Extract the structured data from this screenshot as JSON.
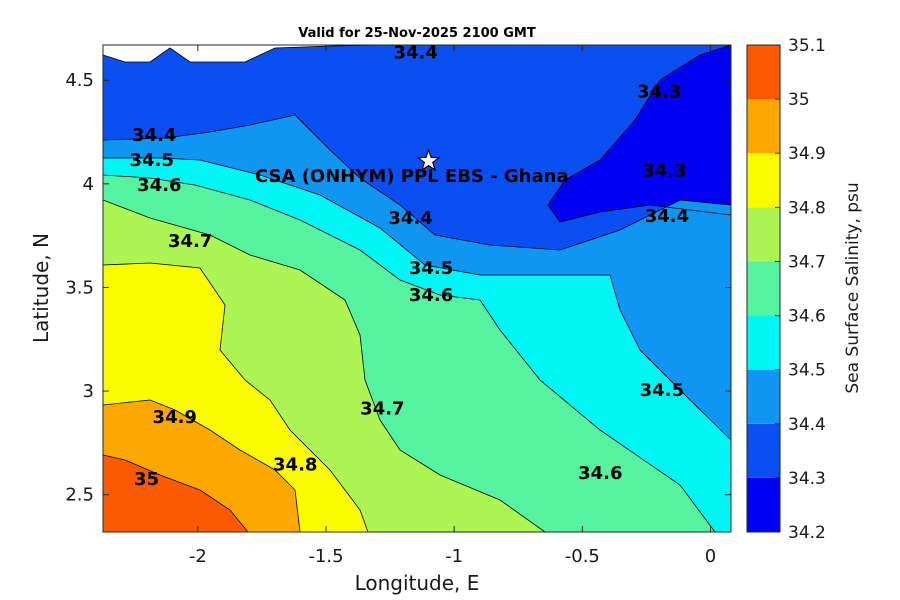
{
  "chart_data": {
    "type": "contour",
    "title": "Valid for 25-Nov-2025 2100 GMT",
    "xlabel": "Longitude, E",
    "ylabel": "Latitude, N",
    "xlim": [
      -2.37,
      0.08
    ],
    "ylim": [
      2.32,
      4.67
    ],
    "x_ticks": [
      "-2",
      "-1.5",
      "-1",
      "-0.5",
      "0"
    ],
    "y_ticks": [
      "2.5",
      "3",
      "3.5",
      "4",
      "4.5"
    ],
    "colorbar": {
      "label": "Sea Surface Salinity, psu",
      "ticks": [
        "34.2",
        "34.3",
        "34.4",
        "34.5",
        "34.6",
        "34.7",
        "34.8",
        "34.9",
        "35",
        "35.1"
      ],
      "colors": [
        "#0000f5",
        "#0a4ff2",
        "#0f96f2",
        "#00f5f5",
        "#55f2a0",
        "#acf552",
        "#fafa00",
        "#fca800",
        "#fb5a00"
      ]
    },
    "contour_labels": [
      {
        "text": "34.4",
        "lon": -1.15,
        "lat": 4.63
      },
      {
        "text": "34.3",
        "lon": -0.2,
        "lat": 4.44
      },
      {
        "text": "34.4",
        "lon": -2.17,
        "lat": 4.23
      },
      {
        "text": "34.5",
        "lon": -2.18,
        "lat": 4.11
      },
      {
        "text": "34.6",
        "lon": -2.15,
        "lat": 3.99
      },
      {
        "text": "34.3",
        "lon": -0.18,
        "lat": 4.06
      },
      {
        "text": "34.4",
        "lon": -1.17,
        "lat": 3.83
      },
      {
        "text": "34.4",
        "lon": -0.17,
        "lat": 3.84
      },
      {
        "text": "34.7",
        "lon": -2.03,
        "lat": 3.72
      },
      {
        "text": "34.5",
        "lon": -1.09,
        "lat": 3.59
      },
      {
        "text": "34.6",
        "lon": -1.09,
        "lat": 3.46
      },
      {
        "text": "34.7",
        "lon": -1.28,
        "lat": 2.91
      },
      {
        "text": "34.5",
        "lon": -0.19,
        "lat": 3.0
      },
      {
        "text": "34.9",
        "lon": -2.09,
        "lat": 2.87
      },
      {
        "text": "34.8",
        "lon": -1.62,
        "lat": 2.64
      },
      {
        "text": "34.6",
        "lon": -0.43,
        "lat": 2.6
      },
      {
        "text": "35",
        "lon": -2.2,
        "lat": 2.57
      }
    ],
    "site": {
      "name": "CSA (ONHYM) PPL EBS  - Ghana",
      "marker": "star",
      "lon": -1.1,
      "lat": 4.11
    }
  }
}
